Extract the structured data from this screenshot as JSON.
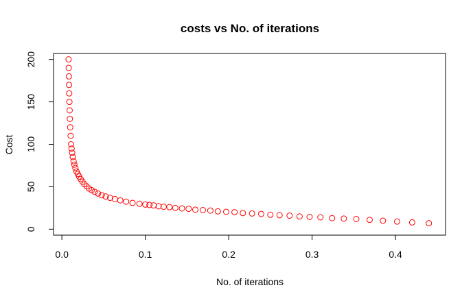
{
  "chart_data": {
    "type": "scatter",
    "title": "costs vs No. of iterations",
    "xlabel": "No. of iterations",
    "ylabel": "Cost",
    "xlim": [
      -0.01,
      0.46
    ],
    "ylim": [
      -7,
      207
    ],
    "xticks": [
      0.0,
      0.1,
      0.2,
      0.3,
      0.4
    ],
    "xtick_labels": [
      "0.0",
      "0.1",
      "0.2",
      "0.3",
      "0.4"
    ],
    "yticks": [
      0,
      50,
      100,
      150,
      200
    ],
    "ytick_labels": [
      "0",
      "50",
      "100",
      "150",
      "200"
    ],
    "grid": false,
    "point_color": "#ff0000",
    "marker": "open-circle",
    "series": [
      {
        "x": [
          0.008,
          0.0082,
          0.0084,
          0.0086,
          0.0088,
          0.009,
          0.0093,
          0.0096,
          0.01,
          0.0105,
          0.011,
          0.0116,
          0.0123,
          0.0131,
          0.014,
          0.015,
          0.0162,
          0.0175,
          0.019,
          0.0207,
          0.0226,
          0.0247,
          0.027,
          0.0296,
          0.0325,
          0.0357,
          0.0393,
          0.0433,
          0.0477,
          0.0525,
          0.0578,
          0.0636,
          0.07,
          0.077,
          0.0847,
          0.093,
          0.1,
          0.105,
          0.11,
          0.116,
          0.122,
          0.129,
          0.136,
          0.144,
          0.152,
          0.16,
          0.169,
          0.178,
          0.187,
          0.197,
          0.207,
          0.217,
          0.228,
          0.239,
          0.25,
          0.261,
          0.273,
          0.285,
          0.297,
          0.31,
          0.324,
          0.338,
          0.353,
          0.369,
          0.385,
          0.402,
          0.42,
          0.44
        ],
        "y": [
          200,
          190,
          180,
          170,
          160,
          150,
          140,
          130,
          120,
          110,
          100,
          95,
          90,
          85,
          80,
          76,
          72,
          68,
          65,
          62,
          59,
          56,
          53,
          50.5,
          48,
          46,
          44,
          42,
          40,
          38.5,
          37,
          35.5,
          34,
          32.5,
          31,
          30,
          29,
          28.5,
          28,
          27,
          26.5,
          26,
          25,
          24.5,
          24,
          23,
          22.5,
          22,
          21,
          20.5,
          20,
          19,
          18.5,
          18,
          17,
          16.5,
          16,
          15,
          14.5,
          14,
          13,
          12.5,
          12,
          11,
          10,
          9,
          8,
          7
        ]
      }
    ]
  }
}
